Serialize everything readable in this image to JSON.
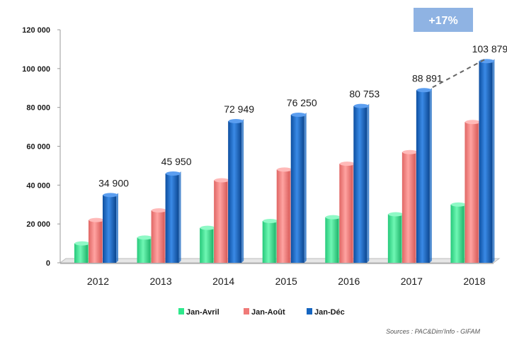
{
  "chart_data": {
    "type": "bar",
    "categories": [
      "2012",
      "2013",
      "2014",
      "2015",
      "2016",
      "2017",
      "2018"
    ],
    "series": [
      {
        "name": "Jan-Avril",
        "color": "#2ee88c",
        "values": [
          10000,
          13000,
          18000,
          21500,
          23500,
          25000,
          30000
        ]
      },
      {
        "name": "Jan-Août",
        "color": "#f07a78",
        "values": [
          22000,
          27000,
          42500,
          48000,
          51000,
          57000,
          72500
        ]
      },
      {
        "name": "Jan-Déc",
        "color": "#1565c0",
        "values": [
          34900,
          45950,
          72949,
          76250,
          80753,
          88891,
          103879
        ]
      }
    ],
    "data_labels": [
      "34 900",
      "45 950",
      "72 949",
      "76 250",
      "80 753",
      "88 891",
      "103 879"
    ],
    "yticks": [
      "0",
      "20 000",
      "40 000",
      "60 000",
      "80 000",
      "100 000",
      "120 000"
    ],
    "ylim": [
      0,
      120000
    ],
    "ytick_step": 20000,
    "legend_position": "bottom",
    "callout": "+17%",
    "source": "Sources : PAC&Dim'Info - GIFAM"
  }
}
